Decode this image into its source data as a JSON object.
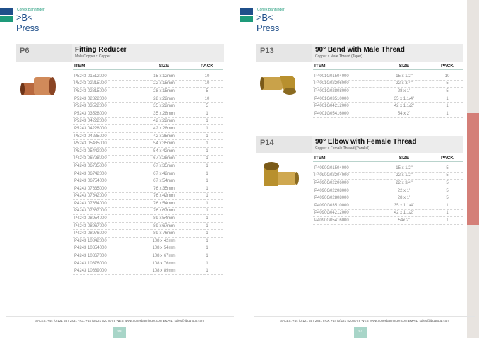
{
  "brand": {
    "small": "Conex Bänninger",
    "big": ">B< Press",
    "colors": {
      "blue": "#1f4f8a",
      "green": "#1e9a7a"
    }
  },
  "footer": "SALES: +44 (0)121 557 2831  FAX: +44 (0)121 520 8778  WEB: www.conexbanninger.com  EMAIL: sales@ibpgroup.com",
  "pages": [
    {
      "number": "66",
      "sections": [
        {
          "code": "P6",
          "title": "Fitting Reducer",
          "subtitle": "Male Copper x Copper",
          "columns": [
            "ITEM",
            "SIZE",
            "PACK"
          ],
          "rows": [
            [
              "P5243 01512000",
              "15 x 12mm",
              "10"
            ],
            [
              "P5243 02215000",
              "22 x 15mm",
              "10"
            ],
            [
              "P5243 02815000",
              "28 x 15mm",
              "5"
            ],
            [
              "P5243 02822000",
              "28 x 22mm",
              "10"
            ],
            [
              "P5243 03522000",
              "35 x 22mm",
              "5"
            ],
            [
              "P5243 03528000",
              "35 x 28mm",
              "1"
            ],
            [
              "P5243 04222000",
              "42 x 22mm",
              "1"
            ],
            [
              "P5243 04228000",
              "42 x 28mm",
              "1"
            ],
            [
              "P5243 04235000",
              "42 x 35mm",
              "1"
            ],
            [
              "P5243 05435000",
              "54 x 35mm",
              "1"
            ],
            [
              "P5243 05442000",
              "54 x 42mm",
              "1"
            ],
            [
              "P4243 06728000",
              "67 x 28mm",
              "1"
            ],
            [
              "P4243 06735000",
              "67 x 35mm",
              "1"
            ],
            [
              "P4243 06742000",
              "67 x 42mm",
              "1"
            ],
            [
              "P4243 06754000",
              "67 x 54mm",
              "1"
            ],
            [
              "P4243 07635000",
              "76 x 35mm",
              "1"
            ],
            [
              "P4243 07642000",
              "76 x 42mm",
              "1"
            ],
            [
              "P4243 07654000",
              "76 x 54mm",
              "1"
            ],
            [
              "P4243 07667000",
              "76 x 67mm",
              "1"
            ],
            [
              "P4243 08954000",
              "89 x 54mm",
              "1"
            ],
            [
              "P4243 08967000",
              "89 x 67mm",
              "1"
            ],
            [
              "P4243 08976000",
              "89 x 76mm",
              "1"
            ],
            [
              "P4243 10842000",
              "108 x 42mm",
              "1"
            ],
            [
              "P4243 10854000",
              "108 x 54mm",
              "1"
            ],
            [
              "P4243 10867000",
              "108 x 67mm",
              "1"
            ],
            [
              "P4243 10876000",
              "108 x 76mm",
              "1"
            ],
            [
              "P4243 10889000",
              "108 x 89mm",
              "1"
            ]
          ]
        }
      ]
    },
    {
      "number": "67",
      "sections": [
        {
          "code": "P13",
          "title": "90° Bend with Male Thread",
          "subtitle": "Copper x Male Thread (Taper)",
          "columns": [
            "ITEM",
            "SIZE",
            "PACK"
          ],
          "rows": [
            [
              "P4001G01504000",
              "15 x 1/2\"",
              "10"
            ],
            [
              "P4001G02206000",
              "22 x 3/4\"",
              "5"
            ],
            [
              "P4001G02808000",
              "28 x 1\"",
              "5"
            ],
            [
              "P4001G03510000",
              "35 x 1.1/4\"",
              "1"
            ],
            [
              "P4001G04212000",
              "42 x 1.1/2\"",
              "1"
            ],
            [
              "P4001G05416000",
              "54 x 2\"",
              "1"
            ]
          ]
        },
        {
          "code": "P14",
          "title": "90° Elbow with Female Thread",
          "subtitle": "Copper x Female Thread (Parallel)",
          "columns": [
            "ITEM",
            "SIZE",
            "PACK"
          ],
          "rows": [
            [
              "P4090G01504000",
              "15 x 1/2\"",
              "5"
            ],
            [
              "P4090G02204000",
              "22 x 1/2\"",
              "5"
            ],
            [
              "P4090G02206000",
              "22 x 3/4\"",
              "5"
            ],
            [
              "P4090G02208000",
              "22 x 1\"",
              "5"
            ],
            [
              "P4090G02808000",
              "28 x 1\"",
              "5"
            ],
            [
              "P4090G03510000",
              "35 x 1.1/4\"",
              "1"
            ],
            [
              "P4090G04212000",
              "42 x 1.1/2\"",
              "1"
            ],
            [
              "P4090G05416000",
              "54x 2\"",
              "1"
            ]
          ]
        }
      ]
    }
  ]
}
